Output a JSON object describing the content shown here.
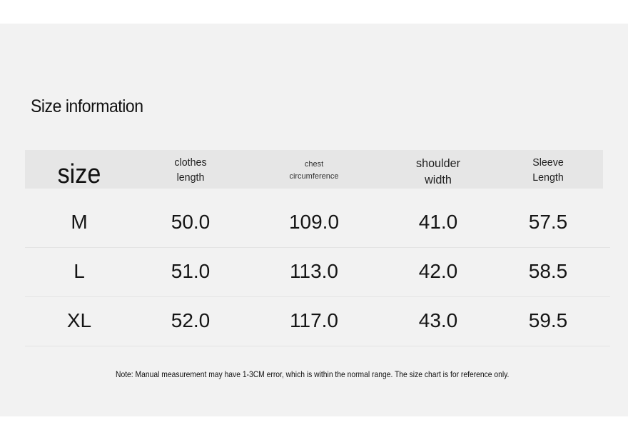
{
  "title": "Size information",
  "table": {
    "headers": {
      "size": "size",
      "clothes_length": [
        "clothes",
        "length"
      ],
      "chest": [
        "chest",
        "circumference"
      ],
      "shoulder": [
        "shoulder",
        "width"
      ],
      "sleeve": [
        "Sleeve",
        "Length"
      ]
    },
    "rows": [
      {
        "size": "M",
        "length": "50.0",
        "chest": "109.0",
        "shoulder": "41.0",
        "sleeve": "57.5"
      },
      {
        "size": "L",
        "length": "51.0",
        "chest": "113.0",
        "shoulder": "42.0",
        "sleeve": "58.5"
      },
      {
        "size": "XL",
        "length": "52.0",
        "chest": "117.0",
        "shoulder": "43.0",
        "sleeve": "59.5"
      }
    ]
  },
  "note": "Note: Manual measurement may have 1-3CM error, which is within the normal range. The size chart is for reference only."
}
